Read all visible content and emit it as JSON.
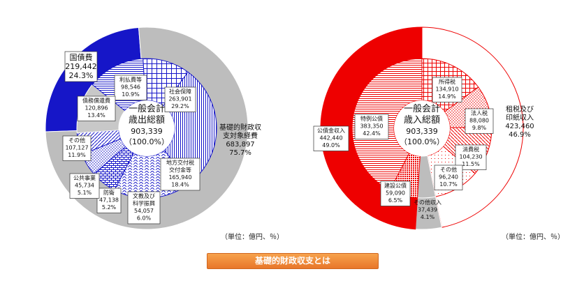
{
  "unit_label": "（単位：億円、％）",
  "button_label": "基礎的財政収支とは",
  "colors": {
    "blue": "#1616c8",
    "red": "#ee0000",
    "gray": "#bdbdbd"
  },
  "chart_data": [
    {
      "type": "pie",
      "center_label": [
        "一般会計",
        "歳出総額",
        "903,339",
        "（100.0%）"
      ],
      "outer_ring": [
        {
          "label": "国債費",
          "value": 219442,
          "percent": "24.3%"
        },
        {
          "label": "基礎的財政収支対象経費",
          "value": 683897,
          "percent": "75.7%"
        }
      ],
      "inner_ring": [
        {
          "label": "利払費等",
          "value": 98546,
          "percent": "10.9%"
        },
        {
          "label": "社会保障",
          "value": 263901,
          "percent": "29.2%"
        },
        {
          "label": "地方交付税交付金等",
          "value": 165940,
          "percent": "18.4%"
        },
        {
          "label": "文教及び科学振興",
          "value": 54057,
          "percent": "6.0%"
        },
        {
          "label": "防衛",
          "value": 47138,
          "percent": "5.2%"
        },
        {
          "label": "公共事業",
          "value": 45734,
          "percent": "5.1%"
        },
        {
          "label": "その他",
          "value": 107127,
          "percent": "11.9%"
        },
        {
          "label": "債務償還費",
          "value": 120896,
          "percent": "13.4%"
        }
      ],
      "labels": [
        {
          "lines": [
            "国債費",
            "219,442",
            "24.3%"
          ]
        },
        {
          "lines": [
            "利払費等",
            "98,546",
            "10.9%"
          ]
        },
        {
          "lines": [
            "債務償還費",
            "120,896",
            "13.4%"
          ]
        },
        {
          "lines": [
            "社会保障",
            "263,901",
            "29.2%"
          ]
        },
        {
          "lines": [
            "基礎的財政収",
            "支対象経費",
            "683,897",
            "75.7%"
          ]
        },
        {
          "lines": [
            "地方交付税",
            "交付金等",
            "165,940",
            "18.4%"
          ]
        },
        {
          "lines": [
            "文教及び",
            "科学振興",
            "54,057",
            "6.0%"
          ]
        },
        {
          "lines": [
            "防衛",
            "47,138",
            "5.2%"
          ]
        },
        {
          "lines": [
            "公共事業",
            "45,734",
            "5.1%"
          ]
        },
        {
          "lines": [
            "その他",
            "107,127",
            "11.9%"
          ]
        }
      ]
    },
    {
      "type": "pie",
      "center_label": [
        "一般会計",
        "歳入総額",
        "903,339",
        "（100.0%）"
      ],
      "outer_ring": [
        {
          "label": "租税及び印紙収入",
          "value": 423460,
          "percent": "46.9%"
        },
        {
          "label": "その他収入",
          "value": 37439,
          "percent": "4.1%"
        },
        {
          "label": "公債金収入",
          "value": 442440,
          "percent": "49.0%"
        }
      ],
      "inner_ring": [
        {
          "label": "所得税",
          "value": 134910,
          "percent": "14.9%"
        },
        {
          "label": "法人税",
          "value": 88080,
          "percent": "9.8%"
        },
        {
          "label": "消費税",
          "value": 104230,
          "percent": "11.5%"
        },
        {
          "label": "その他",
          "value": 96240,
          "percent": "10.7%"
        },
        {
          "label": "その他収入",
          "value": 37439,
          "percent": "4.1%"
        },
        {
          "label": "建設公債",
          "value": 59090,
          "percent": "6.5%"
        },
        {
          "label": "特例公債",
          "value": 383350,
          "percent": "42.4%"
        }
      ],
      "labels": [
        {
          "lines": [
            "所得税",
            "134,910",
            "14.9%"
          ]
        },
        {
          "lines": [
            "法人税",
            "88,080",
            "9.8%"
          ]
        },
        {
          "lines": [
            "租税及び",
            "印紙収入",
            "423,460",
            "46.9%"
          ]
        },
        {
          "lines": [
            "消費税",
            "104,230",
            "11.5%"
          ]
        },
        {
          "lines": [
            "その他",
            "96,240",
            "10.7%"
          ]
        },
        {
          "lines": [
            "その他収入",
            "37,439",
            "4.1%"
          ]
        },
        {
          "lines": [
            "建設公債",
            "59,090",
            "6.5%"
          ]
        },
        {
          "lines": [
            "特例公債",
            "383,350",
            "42.4%"
          ]
        },
        {
          "lines": [
            "公債金収入",
            "442,440",
            "49.0%"
          ]
        }
      ]
    }
  ]
}
